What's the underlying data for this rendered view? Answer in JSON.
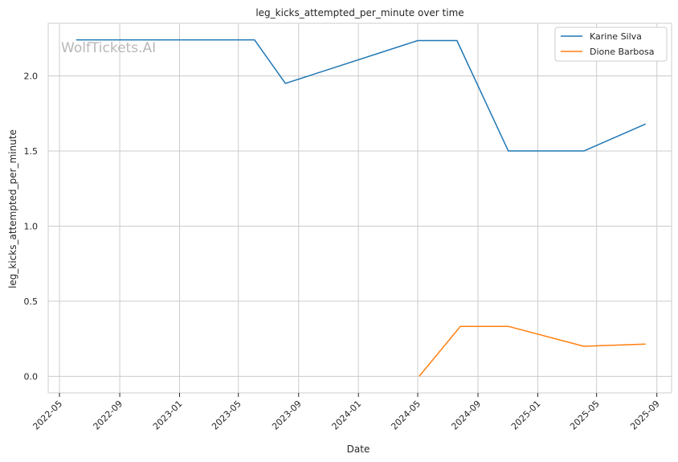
{
  "chart_data": {
    "type": "line",
    "title": "leg_kicks_attempted_per_minute over time",
    "xlabel": "Date",
    "ylabel": "leg_kicks_attempted_per_minute",
    "watermark": "WolfTickets.AI",
    "grid": true,
    "legend_position": "top-right",
    "xlim": [
      "2022-04-08",
      "2025-10-01"
    ],
    "ylim": [
      -0.11,
      2.35
    ],
    "x_ticks": [
      "2022-05",
      "2022-09",
      "2023-01",
      "2023-05",
      "2023-09",
      "2024-01",
      "2024-05",
      "2024-09",
      "2025-01",
      "2025-05",
      "2025-09"
    ],
    "y_ticks": [
      0.0,
      0.5,
      1.0,
      1.5,
      2.0
    ],
    "y_tick_labels": [
      "0.0",
      "0.5",
      "1.0",
      "1.5",
      "2.0"
    ],
    "series": [
      {
        "name": "Karine Silva",
        "color": "#1f77b4",
        "x": [
          "2022-06-04",
          "2023-06-03",
          "2023-08-05",
          "2024-05-01",
          "2024-07-20",
          "2024-11-02",
          "2025-04-05",
          "2025-08-09"
        ],
        "values": [
          2.24,
          2.24,
          1.95,
          2.235,
          2.235,
          1.5,
          1.5,
          1.68
        ]
      },
      {
        "name": "Dione Barbosa",
        "color": "#ff7f0e",
        "x": [
          "2024-05-04",
          "2024-07-27",
          "2024-11-02",
          "2025-04-05",
          "2025-08-09"
        ],
        "values": [
          0.0,
          0.333,
          0.333,
          0.2,
          0.215
        ]
      }
    ]
  }
}
